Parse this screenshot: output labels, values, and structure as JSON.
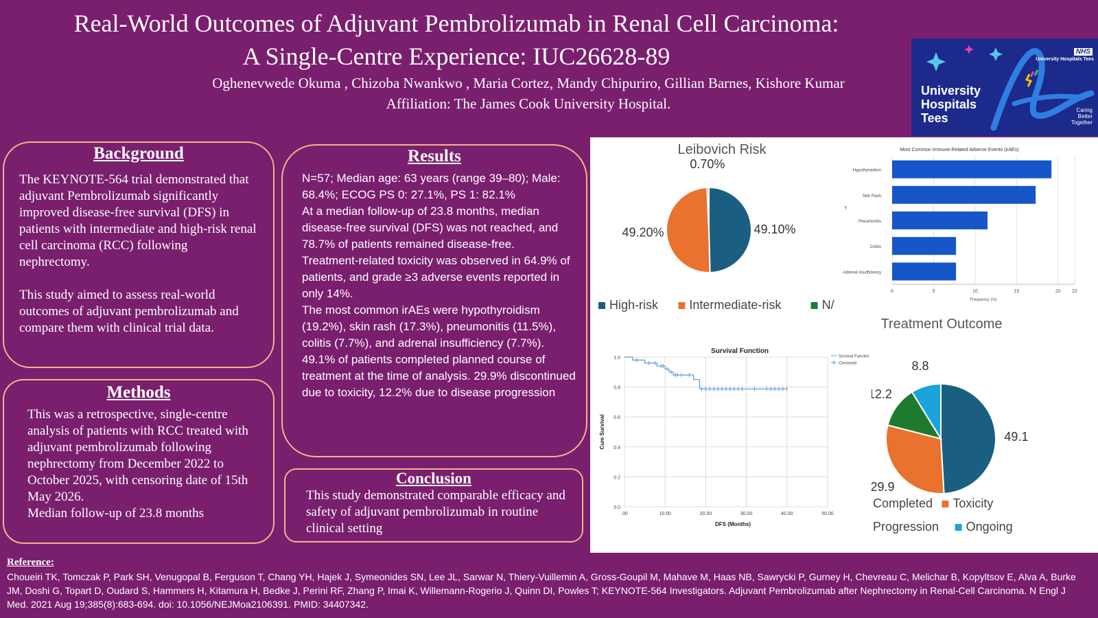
{
  "header": {
    "title_line1": "Real-World Outcomes of Adjuvant Pembrolizumab in Renal Cell Carcinoma:",
    "title_line2": "A Single-Centre Experience: IUC26628-89",
    "authors": "Oghenevwede Okuma , Chizoba Nwankwo , Maria Cortez, Mandy Chipuriro, Gillian Barnes, Kishore Kumar",
    "affiliation": "Affiliation: The James Cook University Hospital."
  },
  "logo": {
    "nhs": "NHS",
    "trust": "University Hospitals Tees",
    "brand_line1": "University",
    "brand_line2": "Hospitals",
    "brand_line3": "Tees",
    "tagline1": "Caring",
    "tagline2": "Better",
    "tagline3": "Together",
    "colors": {
      "background": "#1c2a8c",
      "swoosh": "#2f7fe0",
      "star1": "#56c7e8",
      "star2": "#e23fb0"
    }
  },
  "background": {
    "heading": "Background",
    "para1": "The KEYNOTE-564 trial demonstrated that adjuvant Pembrolizumab significantly improved disease-free survival (DFS) in patients with intermediate and high-risk renal cell carcinoma (RCC) following nephrectomy.",
    "para2": "This study aimed to assess real-world outcomes of adjuvant pembrolizumab and compare them with clinical trial data."
  },
  "methods": {
    "heading": "Methods",
    "para1": "This was a retrospective, single-centre analysis of patients with RCC treated with adjuvant pembrolizumab following nephrectomy from December 2022 to October 2025, with censoring date of 15th May 2026.",
    "para2": "Median follow-up of 23.8 months"
  },
  "results": {
    "heading": "Results",
    "para1": "N=57; Median age: 63 years (range 39–80); Male: 68.4%; ECOG PS 0: 27.1%,  PS 1: 82.1%",
    "para2": "At a median follow-up of 23.8 months, median disease-free survival (DFS) was not reached, and 78.7% of patients remained disease-free.",
    "para3": "Treatment-related toxicity was observed in 64.9% of patients, and grade ≥3 adverse events reported in only 14%.",
    "para4": "The most common irAEs were hypothyroidism (19.2%), skin rash (17.3%), pneumonitis (11.5%), colitis (7.7%), and adrenal insufficiency (7.7%). 49.1% of patients completed planned course of treatment at the time of analysis. 29.9% discontinued due to toxicity, 12.2% due to disease progression"
  },
  "conclusion": {
    "heading": "Conclusion",
    "text": "This study demonstrated comparable efficacy and safety of adjuvant pembrolizumab in routine clinical setting"
  },
  "reference": {
    "heading": "Reference:",
    "text": "Choueiri TK, Tomczak P, Park SH, Venugopal B, Ferguson T, Chang YH, Hajek J, Symeonides SN, Lee JL, Sarwar N, Thiery-Vuillemin A, Gross-Goupil M, Mahave M, Haas NB, Sawrycki P, Gurney H, Chevreau C, Melichar B, Kopyltsov E, Alva A, Burke JM, Doshi G, Topart D, Oudard S, Hammers H, Kitamura H, Bedke J, Perini RF, Zhang P, Imai K, Willemann-Rogerio J, Quinn DI, Powles T; KEYNOTE-564 Investigators. Adjuvant Pembrolizumab after Nephrectomy in Renal-Cell Carcinoma. N Engl J Med. 2021 Aug 19;385(8):683-694. doi: 10.1056/NEJMoa2106391. PMID: 34407342."
  },
  "chart_data": [
    {
      "type": "pie",
      "title": "Leibovich Risk",
      "categories": [
        "High-risk",
        "Intermediate-risk",
        "N/A"
      ],
      "values": [
        49.1,
        49.2,
        0.7
      ],
      "labels": [
        "49.10%",
        "49.20%",
        "0.70%"
      ],
      "colors": [
        "#1a5f82",
        "#e8722e",
        "#1e7a2e"
      ],
      "legend": "bottom"
    },
    {
      "type": "bar",
      "orientation": "horizontal",
      "title": "Most Common Immune-Related Adverse Events (irAEs)",
      "categories": [
        "Hypothyroidism",
        "Skin Rash",
        "Pneumonitis",
        "Colitis",
        "Adrenal Insufficiency"
      ],
      "values": [
        19.2,
        17.3,
        11.5,
        7.7,
        7.7
      ],
      "xlabel": "Frequency (%)",
      "ylabel": "Y",
      "xlim": [
        0,
        22
      ],
      "xticks": [
        "0",
        "5",
        "10",
        "15",
        "20",
        "22"
      ],
      "color": "#1756c8"
    },
    {
      "type": "line",
      "title": "Survival Function",
      "xlabel": "DFS (Months)",
      "ylabel": "Cum Survival",
      "xlim": [
        0,
        50
      ],
      "ylim": [
        0,
        1
      ],
      "xticks": [
        ".00",
        "10.00",
        "20.00",
        "30.00",
        "40.00",
        "50.00"
      ],
      "yticks": [
        "0.0",
        "0.2",
        "0.4",
        "0.6",
        "0.8",
        "1.0"
      ],
      "legend": [
        "Survival Function",
        "Censored"
      ],
      "steps": [
        [
          0,
          1.0
        ],
        [
          2,
          0.98
        ],
        [
          5,
          0.96
        ],
        [
          8,
          0.94
        ],
        [
          10,
          0.92
        ],
        [
          11,
          0.9
        ],
        [
          12,
          0.88
        ],
        [
          17,
          0.85
        ],
        [
          18.5,
          0.787
        ],
        [
          40,
          0.787
        ]
      ],
      "censored_x": [
        3,
        6,
        7.5,
        9,
        9.5,
        10.5,
        11.5,
        12.5,
        13,
        14,
        16,
        19,
        20,
        21,
        22,
        23,
        24,
        25,
        26,
        27,
        28,
        29,
        32,
        35,
        36,
        37,
        38,
        39,
        40
      ],
      "color": "#5b9bd5"
    },
    {
      "type": "pie",
      "title": "Treatment Outcome",
      "categories": [
        "Completed",
        "Toxicity",
        "Progression",
        "Ongoing"
      ],
      "values": [
        49.1,
        29.9,
        12.2,
        8.8
      ],
      "labels": [
        "49.1",
        "29.9",
        "12.2",
        "8.8"
      ],
      "colors": [
        "#1a5f82",
        "#e8722e",
        "#1e7a2e",
        "#1ba3db"
      ],
      "legend": "bottom"
    }
  ]
}
